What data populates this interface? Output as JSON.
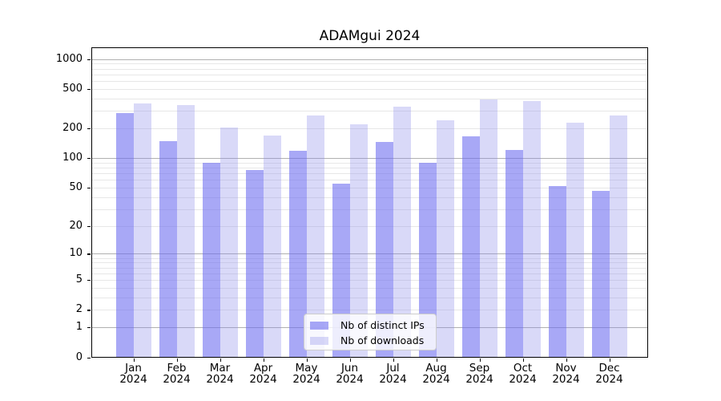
{
  "title": "ADAMgui 2024",
  "chart_data": {
    "type": "bar",
    "title": "ADAMgui 2024",
    "categories": [
      "Jan 2024",
      "Feb 2024",
      "Mar 2024",
      "Apr 2024",
      "May 2024",
      "Jun 2024",
      "Jul 2024",
      "Aug 2024",
      "Sep 2024",
      "Oct 2024",
      "Nov 2024",
      "Dec 2024"
    ],
    "series": [
      {
        "name": "Nb of distinct IPs",
        "color": "rgba(110,110,240,0.60)",
        "values": [
          286,
          149,
          90,
          76,
          119,
          55,
          145,
          90,
          167,
          121,
          52,
          46
        ]
      },
      {
        "name": "Nb of downloads",
        "color": "rgba(140,140,235,0.33)",
        "values": [
          356,
          345,
          206,
          170,
          272,
          222,
          330,
          240,
          396,
          375,
          230,
          272
        ]
      }
    ],
    "xlabel": "",
    "ylabel": "",
    "y_ticks": [
      0,
      1,
      2,
      5,
      10,
      20,
      50,
      100,
      200,
      500,
      1000
    ],
    "ylim": [
      0,
      1100
    ],
    "y_scale": "log10(value+1)",
    "grid": "major decades dark, minor 2-9 per decade light",
    "grid_major_color": "#b0b0b0",
    "grid_minor_color": "#e7e7e7",
    "legend_position": "lower center"
  }
}
